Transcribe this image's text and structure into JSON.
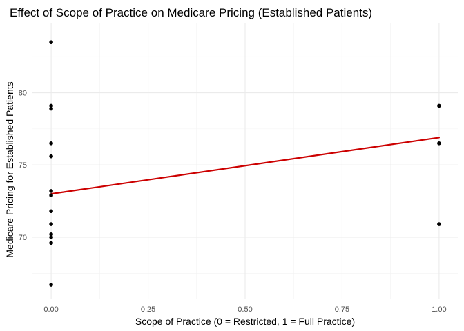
{
  "chart_data": {
    "type": "scatter",
    "title": "Effect of Scope of Practice on Medicare Pricing (Established Patients)",
    "xlabel": "Scope of Practice (0 = Restricted, 1 = Full Practice)",
    "ylabel": "Medicare Pricing for Established Patients",
    "xlim": [
      -0.05,
      1.05
    ],
    "ylim": [
      65.7,
      84.8
    ],
    "x_ticks": [
      0,
      0.25,
      0.5,
      0.75,
      1
    ],
    "x_tick_labels": [
      "0.00",
      "0.25",
      "0.50",
      "0.75",
      "1.00"
    ],
    "y_ticks": [
      70,
      75,
      80
    ],
    "y_tick_labels": [
      "70",
      "75",
      "80"
    ],
    "grid": true,
    "points": [
      {
        "x": 0,
        "y": 83.5
      },
      {
        "x": 0,
        "y": 79.1
      },
      {
        "x": 0,
        "y": 78.9
      },
      {
        "x": 0,
        "y": 76.5
      },
      {
        "x": 0,
        "y": 75.6
      },
      {
        "x": 0,
        "y": 73.2
      },
      {
        "x": 0,
        "y": 72.9
      },
      {
        "x": 0,
        "y": 71.8
      },
      {
        "x": 0,
        "y": 70.9
      },
      {
        "x": 0,
        "y": 70.2
      },
      {
        "x": 0,
        "y": 70.0
      },
      {
        "x": 0,
        "y": 69.6
      },
      {
        "x": 0,
        "y": 66.7
      },
      {
        "x": 1,
        "y": 79.1
      },
      {
        "x": 1,
        "y": 76.5
      },
      {
        "x": 1,
        "y": 70.9
      }
    ],
    "trend_line": {
      "x": [
        0,
        1
      ],
      "y": [
        73.0,
        76.9
      ]
    },
    "colors": {
      "points": "#000000",
      "trend_line": "#cc0000"
    }
  }
}
